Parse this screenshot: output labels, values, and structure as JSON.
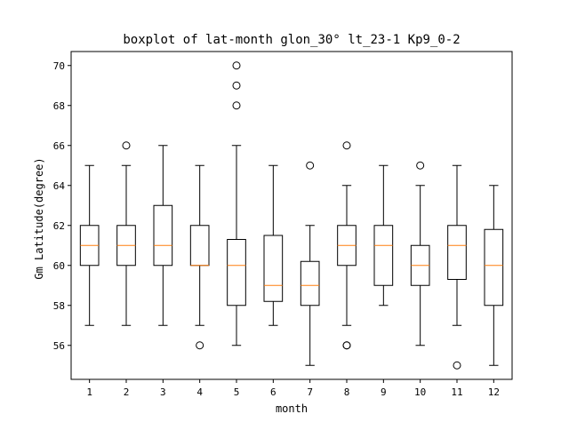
{
  "chart_data": {
    "type": "boxplot",
    "title": "boxplot of lat-month glon_30°  lt_23-1 Kp9_0-2",
    "xlabel": "month",
    "ylabel": "Gm Latitude(degree)",
    "ylim": [
      54.3,
      70.7
    ],
    "yticks": [
      56,
      58,
      60,
      62,
      64,
      66,
      68,
      70
    ],
    "grid": false,
    "colors": {
      "box": "#000000",
      "median": "#ff7f0e",
      "flier": "#000000"
    },
    "categories": [
      "1",
      "2",
      "3",
      "4",
      "5",
      "6",
      "7",
      "8",
      "9",
      "10",
      "11",
      "12"
    ],
    "boxes": [
      {
        "month": "1",
        "whisker_low": 57,
        "q1": 60,
        "median": 61,
        "q3": 62,
        "whisker_high": 65,
        "fliers": []
      },
      {
        "month": "2",
        "whisker_low": 57,
        "q1": 60,
        "median": 61,
        "q3": 62,
        "whisker_high": 65,
        "fliers": [
          66
        ]
      },
      {
        "month": "3",
        "whisker_low": 57,
        "q1": 60,
        "median": 61,
        "q3": 63,
        "whisker_high": 66,
        "fliers": []
      },
      {
        "month": "4",
        "whisker_low": 57,
        "q1": 60,
        "median": 60,
        "q3": 62,
        "whisker_high": 65,
        "fliers": [
          56
        ]
      },
      {
        "month": "5",
        "whisker_low": 56,
        "q1": 58,
        "median": 60,
        "q3": 61.3,
        "whisker_high": 66,
        "fliers": [
          68,
          69,
          70
        ]
      },
      {
        "month": "6",
        "whisker_low": 57,
        "q1": 58.2,
        "median": 59,
        "q3": 61.5,
        "whisker_high": 65,
        "fliers": []
      },
      {
        "month": "7",
        "whisker_low": 55,
        "q1": 58,
        "median": 59,
        "q3": 60.2,
        "whisker_high": 62,
        "fliers": [
          65
        ]
      },
      {
        "month": "8",
        "whisker_low": 57,
        "q1": 60,
        "median": 61,
        "q3": 62,
        "whisker_high": 64,
        "fliers": [
          56,
          56,
          66
        ]
      },
      {
        "month": "9",
        "whisker_low": 58,
        "q1": 59,
        "median": 61,
        "q3": 62,
        "whisker_high": 65,
        "fliers": []
      },
      {
        "month": "10",
        "whisker_low": 56,
        "q1": 59,
        "median": 60,
        "q3": 61,
        "whisker_high": 64,
        "fliers": [
          65
        ]
      },
      {
        "month": "11",
        "whisker_low": 57,
        "q1": 59.3,
        "median": 61,
        "q3": 62,
        "whisker_high": 65,
        "fliers": [
          55
        ]
      },
      {
        "month": "12",
        "whisker_low": 55,
        "q1": 58,
        "median": 60,
        "q3": 61.8,
        "whisker_high": 64,
        "fliers": []
      }
    ]
  }
}
